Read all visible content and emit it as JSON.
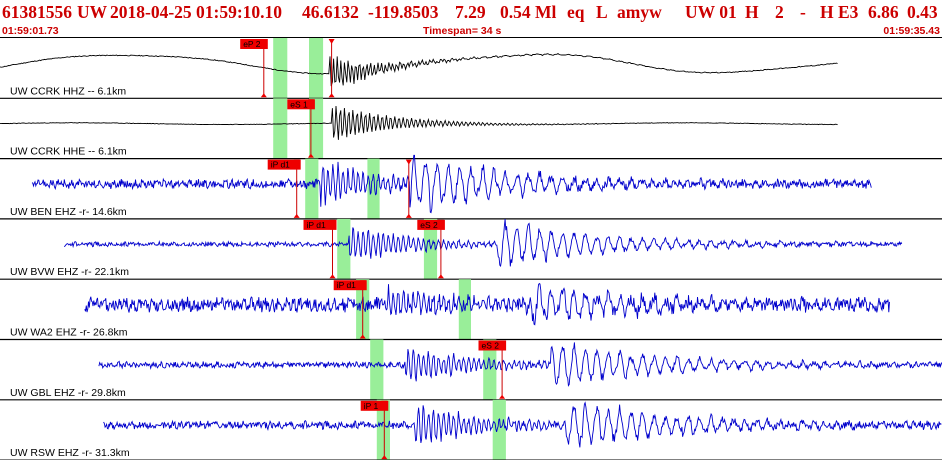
{
  "header": {
    "event_id": "61381556",
    "network": "UW",
    "datetime": "2018-04-25 01:59:10.10",
    "latitude": "46.6132",
    "longitude": "-119.8503",
    "depth": "7.29",
    "magnitude": "0.54 Ml",
    "event_type": "eq",
    "location_type": "L",
    "author": "amyw",
    "source_info": "UW 01",
    "field_h": "H",
    "field_num": "2",
    "field_dash": "-",
    "field_he3": "H E3",
    "value_a": "6.86",
    "value_b": "0.43",
    "start_time": "01:59:01.73",
    "timespan": "Timespan=  34 s",
    "end_time": "01:59:35.43"
  },
  "colors": {
    "header_text": "#cc0000",
    "pick_flag": "#ee0000",
    "pick_window": "#99ee99",
    "trace_broadband": "#000000",
    "trace_short_period": "#0000cc",
    "separator": "#000000"
  },
  "traces": [
    {
      "label": "UW CCRK HHZ -- 6.1km",
      "color": "#000000",
      "kind": "broadband_z",
      "seed": 11,
      "start_t": 0.0,
      "end_t": 0.89,
      "arrival_t": 0.35,
      "amplitude": 0.55,
      "windows": [
        [
          0.29,
          0.305
        ],
        [
          0.328,
          0.343
        ]
      ],
      "picks": [
        {
          "label": "eP 2",
          "t": 0.28,
          "marker": "v"
        },
        {
          "label": "",
          "t": 0.352,
          "marker": "v"
        }
      ]
    },
    {
      "label": "UW CCRK HHE -- 6.1km",
      "color": "#000000",
      "kind": "broadband_e",
      "seed": 23,
      "start_t": 0.0,
      "end_t": 0.89,
      "arrival_t": 0.352,
      "amplitude": 0.45,
      "windows": [
        [
          0.29,
          0.305
        ],
        [
          0.328,
          0.343
        ]
      ],
      "picks": [
        {
          "label": "eS 1",
          "t": 0.33,
          "marker": "v"
        }
      ]
    },
    {
      "label": "UW BEN EHZ -r- 14.6km",
      "color": "#0000cc",
      "kind": "short_period",
      "seed": 37,
      "start_t": 0.034,
      "end_t": 0.925,
      "arrival_t": 0.34,
      "s_arrival_t": 0.435,
      "noise": 0.16,
      "amplitude": 0.8,
      "windows": [
        [
          0.324,
          0.338
        ],
        [
          0.39,
          0.403
        ]
      ],
      "picks": [
        {
          "label": "iP d1",
          "t": 0.315,
          "marker": "v"
        },
        {
          "label": "",
          "t": 0.434,
          "marker": "v"
        }
      ]
    },
    {
      "label": "UW BVW EHZ -r- 22.1km",
      "color": "#0000cc",
      "kind": "short_period",
      "seed": 53,
      "start_t": 0.068,
      "end_t": 0.958,
      "arrival_t": 0.37,
      "s_arrival_t": 0.527,
      "noise": 0.09,
      "amplitude": 0.72,
      "windows": [
        [
          0.358,
          0.372
        ],
        [
          0.45,
          0.464
        ]
      ],
      "picks": [
        {
          "label": "iP d1",
          "t": 0.353,
          "marker": "v"
        },
        {
          "label": "eS 2",
          "t": 0.468,
          "marker": "v"
        }
      ]
    },
    {
      "label": "UW WA2 EHZ -r- 26.8km",
      "color": "#0000cc",
      "kind": "short_period",
      "seed": 71,
      "start_t": 0.09,
      "end_t": 0.945,
      "arrival_t": 0.41,
      "s_arrival_t": 0.565,
      "noise": 0.34,
      "amplitude": 0.6,
      "windows": [
        [
          0.378,
          0.392
        ],
        [
          0.487,
          0.5
        ]
      ],
      "picks": [
        {
          "label": "iP d1",
          "t": 0.385,
          "marker": "v"
        }
      ]
    },
    {
      "label": "UW GBL EHZ -r- 29.8km",
      "color": "#0000cc",
      "kind": "short_period",
      "seed": 89,
      "start_t": 0.105,
      "end_t": 1.0,
      "arrival_t": 0.43,
      "s_arrival_t": 0.585,
      "noise": 0.12,
      "amplitude": 0.7,
      "windows": [
        [
          0.393,
          0.407
        ],
        [
          0.513,
          0.527
        ]
      ],
      "picks": [
        {
          "label": "eS 2",
          "t": 0.533,
          "marker": "v"
        }
      ]
    },
    {
      "label": "UW RSW EHZ -r- 31.3km",
      "color": "#0000cc",
      "kind": "short_period",
      "seed": 97,
      "start_t": 0.11,
      "end_t": 1.0,
      "arrival_t": 0.44,
      "s_arrival_t": 0.6,
      "noise": 0.15,
      "amplitude": 0.75,
      "windows": [
        [
          0.4,
          0.414
        ],
        [
          0.523,
          0.537
        ]
      ],
      "picks": [
        {
          "label": "iP 1",
          "t": 0.408,
          "marker": "v"
        }
      ]
    }
  ]
}
